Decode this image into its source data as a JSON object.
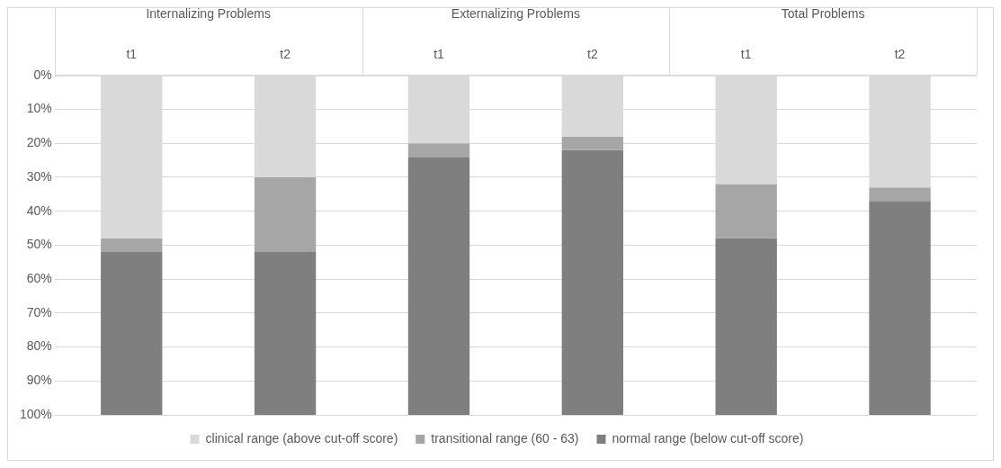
{
  "chart_data": {
    "type": "bar",
    "stacked": true,
    "categories": [
      "t1",
      "t2",
      "t1",
      "t2",
      "t1",
      "t2"
    ],
    "annotations": [
      "Internalizing Problems",
      "Externalizing Problems",
      "Total Problems"
    ],
    "series": [
      {
        "name": "clinical range (above cut-off score)",
        "color": "#d9d9d9",
        "values": [
          48,
          30,
          20,
          18,
          32,
          33
        ]
      },
      {
        "name": "transitional range (60 - 63)",
        "color": "#a6a6a6",
        "values": [
          4,
          22,
          4,
          4,
          16,
          4
        ]
      },
      {
        "name": "normal range (below cut-off score)",
        "color": "#7f7f7f",
        "values": [
          48,
          48,
          76,
          78,
          52,
          63
        ]
      }
    ],
    "ylim": [
      100,
      0
    ],
    "yticks": [
      {
        "value": 0,
        "label": "0%"
      },
      {
        "value": 10,
        "label": "10%"
      },
      {
        "value": 20,
        "label": "20%"
      },
      {
        "value": 30,
        "label": "30%"
      },
      {
        "value": 40,
        "label": "40%"
      },
      {
        "value": 50,
        "label": "50%"
      },
      {
        "value": 60,
        "label": "60%"
      },
      {
        "value": 70,
        "label": "70%"
      },
      {
        "value": 80,
        "label": "80%"
      },
      {
        "value": 90,
        "label": "90%"
      },
      {
        "value": 100,
        "label": "100%"
      }
    ],
    "grid": "y",
    "legend": "bottom"
  }
}
